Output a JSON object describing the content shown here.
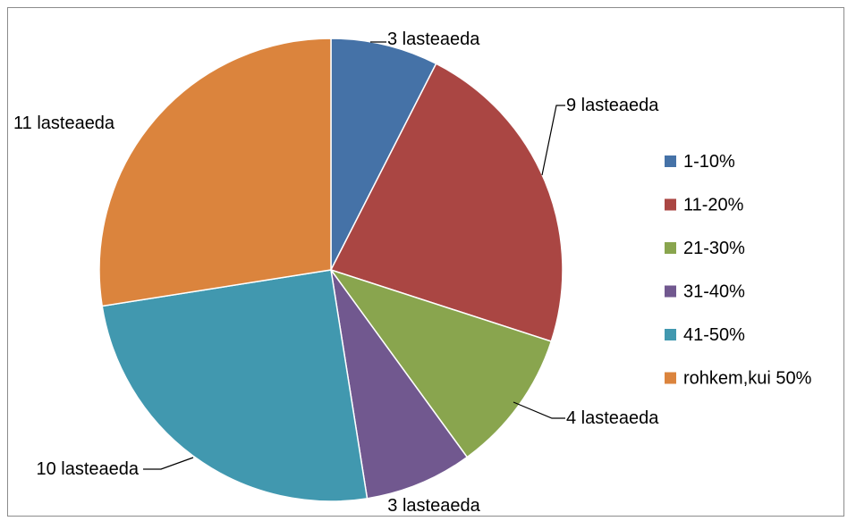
{
  "chart_data": {
    "type": "pie",
    "title": "",
    "legend_position": "right",
    "slices": [
      {
        "category": "1-10%",
        "value": 3,
        "data_label": "3 lasteaeda",
        "color": "#4572A7"
      },
      {
        "category": "11-20%",
        "value": 9,
        "data_label": "9 lasteaeda",
        "color": "#AA4643"
      },
      {
        "category": "21-30%",
        "value": 4,
        "data_label": "4 lasteaeda",
        "color": "#89A54E"
      },
      {
        "category": "31-40%",
        "value": 3,
        "data_label": "3 lasteaeda",
        "color": "#71588F"
      },
      {
        "category": "41-50%",
        "value": 10,
        "data_label": "10 lasteaeda",
        "color": "#4198AF"
      },
      {
        "category": "rohkem,kui 50%",
        "value": 11,
        "data_label": "11 lasteaeda",
        "color": "#DB843D"
      }
    ]
  }
}
